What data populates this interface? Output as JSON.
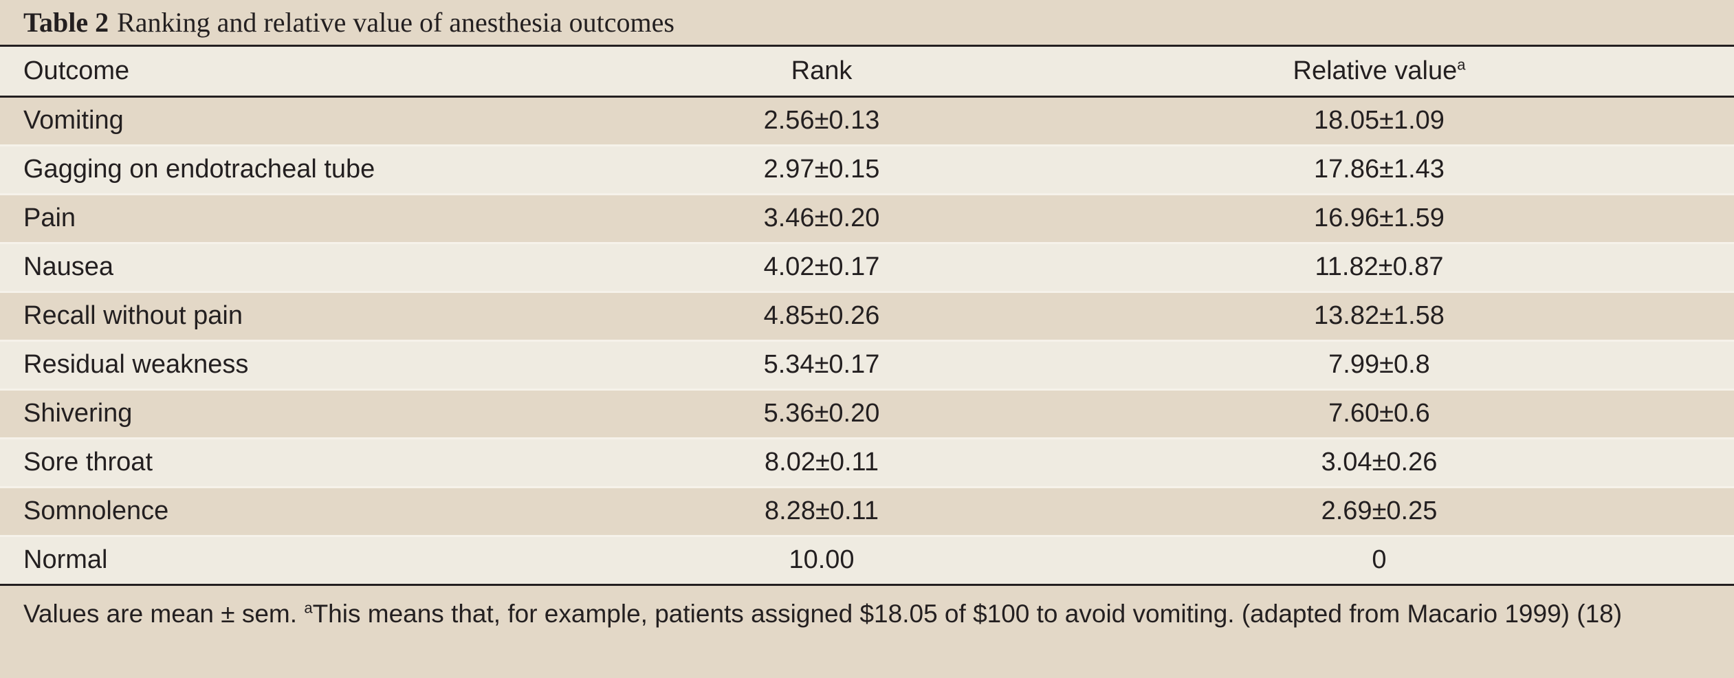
{
  "caption": {
    "label": "Table 2",
    "text": "Ranking and relative value of anesthesia outcomes"
  },
  "columns": {
    "outcome": "Outcome",
    "rank": "Rank",
    "relative_value": "Relative value",
    "relative_value_marker": "a"
  },
  "rows": [
    {
      "outcome": "Vomiting",
      "rank": "2.56±0.13",
      "relative_value": "18.05±1.09"
    },
    {
      "outcome": "Gagging on endotracheal tube",
      "rank": "2.97±0.15",
      "relative_value": "17.86±1.43"
    },
    {
      "outcome": "Pain",
      "rank": "3.46±0.20",
      "relative_value": "16.96±1.59"
    },
    {
      "outcome": "Nausea",
      "rank": "4.02±0.17",
      "relative_value": "11.82±0.87"
    },
    {
      "outcome": "Recall without pain",
      "rank": "4.85±0.26",
      "relative_value": "13.82±1.58"
    },
    {
      "outcome": "Residual weakness",
      "rank": "5.34±0.17",
      "relative_value": "7.99±0.8"
    },
    {
      "outcome": "Shivering",
      "rank": "5.36±0.20",
      "relative_value": "7.60±0.6"
    },
    {
      "outcome": "Sore throat",
      "rank": "8.02±0.11",
      "relative_value": "3.04±0.26"
    },
    {
      "outcome": "Somnolence",
      "rank": "8.28±0.11",
      "relative_value": "2.69±0.25"
    },
    {
      "outcome": "Normal",
      "rank": "10.00",
      "relative_value": "0"
    }
  ],
  "footnote": {
    "prefix": "Values are mean ± sem. ",
    "marker": "a",
    "text": "This means that, for example, patients assigned $18.05 of $100 to avoid vomiting. (adapted from Macario 1999) (18)"
  },
  "colors": {
    "band_dark": "#e3d8c7",
    "band_light": "#efebe1",
    "rule": "#231f20"
  }
}
